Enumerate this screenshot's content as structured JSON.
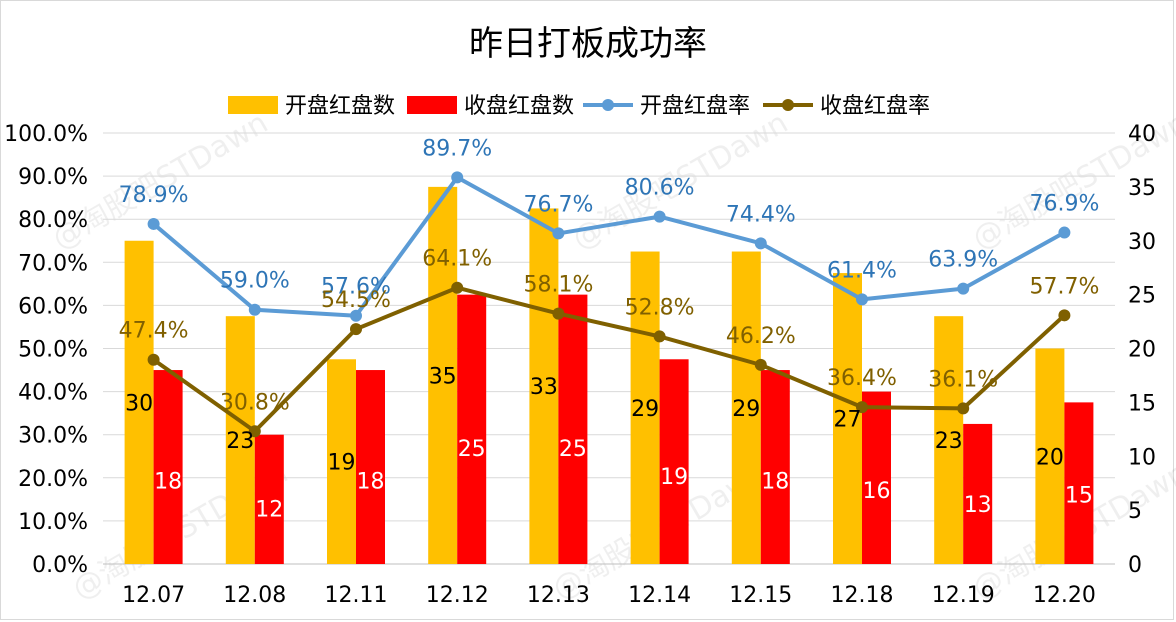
{
  "chart_data": {
    "type": "bar+line",
    "title": "昨日打板成功率",
    "categories": [
      "12.07",
      "12.08",
      "12.11",
      "12.12",
      "12.13",
      "12.14",
      "12.15",
      "12.18",
      "12.19",
      "12.20"
    ],
    "series": [
      {
        "name": "开盘红盘数",
        "type": "bar",
        "axis": "right",
        "color": "#ffc000",
        "values": [
          30,
          23,
          19,
          35,
          33,
          29,
          29,
          27,
          23,
          20
        ]
      },
      {
        "name": "收盘红盘数",
        "type": "bar",
        "axis": "right",
        "color": "#ff0000",
        "values": [
          18,
          12,
          18,
          25,
          25,
          19,
          18,
          16,
          13,
          15
        ]
      },
      {
        "name": "开盘红盘率",
        "type": "line",
        "axis": "left",
        "color": "#5b9bd5",
        "label_color": "#2e75b6",
        "values": [
          78.9,
          59.0,
          57.6,
          89.7,
          76.7,
          80.6,
          74.4,
          61.4,
          63.9,
          76.9
        ],
        "labels": [
          "78.9%",
          "59.0%",
          "57.6%",
          "89.7%",
          "76.7%",
          "80.6%",
          "74.4%",
          "61.4%",
          "63.9%",
          "76.9%"
        ]
      },
      {
        "name": "收盘红盘率",
        "type": "line",
        "axis": "left",
        "color": "#7f6000",
        "label_color": "#806000",
        "values": [
          47.4,
          30.8,
          54.5,
          64.1,
          58.1,
          52.8,
          46.2,
          36.4,
          36.1,
          57.7
        ],
        "labels": [
          "47.4%",
          "30.8%",
          "54.5%",
          "64.1%",
          "58.1%",
          "52.8%",
          "46.2%",
          "36.4%",
          "36.1%",
          "57.7%"
        ]
      }
    ],
    "y_left": {
      "ylim": [
        0,
        100
      ],
      "ticks": [
        "100.0%",
        "90.0%",
        "80.0%",
        "70.0%",
        "60.0%",
        "50.0%",
        "40.0%",
        "30.0%",
        "20.0%",
        "10.0%",
        "0.0%"
      ]
    },
    "y_right": {
      "ylim": [
        0,
        40
      ],
      "ticks": [
        "40",
        "35",
        "30",
        "25",
        "20",
        "15",
        "10",
        "5",
        "0"
      ]
    },
    "grid": true,
    "legend": "top-center"
  },
  "watermark": "@淘股吧STDawn"
}
